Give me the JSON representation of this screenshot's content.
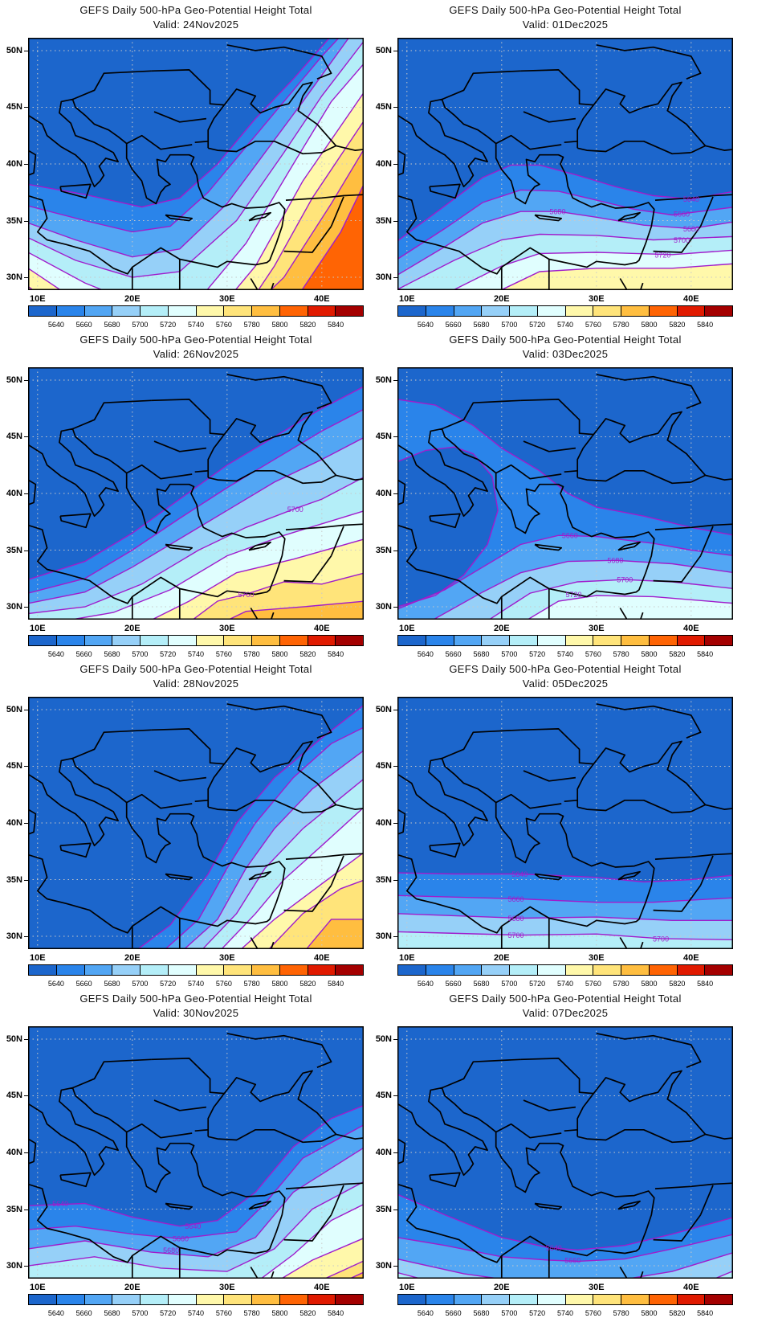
{
  "colorbar": {
    "labels": [
      "5640",
      "5660",
      "5680",
      "5700",
      "5720",
      "5740",
      "5760",
      "5780",
      "5800",
      "5820",
      "5840"
    ],
    "colors": [
      "#1c66cc",
      "#2a84ea",
      "#52a6f4",
      "#96d0f8",
      "#b4eef8",
      "#e0fefe",
      "#fff8aa",
      "#ffe47a",
      "#ffbe40",
      "#ff6404",
      "#e01a00",
      "#a40000"
    ]
  },
  "axes": {
    "lat_labels": [
      "50N",
      "45N",
      "40N",
      "35N",
      "30N"
    ],
    "lon_labels": [
      "10E",
      "20E",
      "30E",
      "40E"
    ]
  },
  "contour_color": "#a01ccc",
  "panels": [
    {
      "title": "GEFS Daily 500-hPa Geo-Potential Height Total",
      "valid": "Valid: 24Nov2025",
      "contour_labels": []
    },
    {
      "title": "GEFS Daily 500-hPa Geo-Potential Height Total",
      "valid": "Valid: 01Dec2025",
      "contour_labels": [
        {
          "text": "5680",
          "lon": 25.9,
          "lat": 35.8
        },
        {
          "text": "5640",
          "lon": 40,
          "lat": 36.9
        },
        {
          "text": "5660",
          "lon": 39,
          "lat": 35.6
        },
        {
          "text": "5680",
          "lon": 40,
          "lat": 34.3
        },
        {
          "text": "5700",
          "lon": 39,
          "lat": 33.3
        },
        {
          "text": "5720",
          "lon": 37,
          "lat": 32
        }
      ]
    },
    {
      "title": "GEFS Daily 500-hPa Geo-Potential Height Total",
      "valid": "Valid: 26Nov2025",
      "contour_labels": [
        {
          "text": "5700",
          "lon": 37.2,
          "lat": 38.6
        },
        {
          "text": "5760",
          "lon": 32,
          "lat": 31.1
        }
      ]
    },
    {
      "title": "GEFS Daily 500-hPa Geo-Potential Height Total",
      "valid": "Valid: 03Dec2025",
      "contour_labels": [
        {
          "text": "5660",
          "lon": 27.2,
          "lat": 36.3
        },
        {
          "text": "5680",
          "lon": 32,
          "lat": 34.1
        },
        {
          "text": "5700",
          "lon": 33,
          "lat": 32.4
        },
        {
          "text": "5720",
          "lon": 27.6,
          "lat": 31.1
        }
      ]
    },
    {
      "title": "GEFS Daily 500-hPa Geo-Potential Height Total",
      "valid": "Valid: 28Nov2025",
      "contour_labels": []
    },
    {
      "title": "GEFS Daily 500-hPa Geo-Potential Height Total",
      "valid": "Valid: 05Dec2025",
      "contour_labels": [
        {
          "text": "5640",
          "lon": 21.9,
          "lat": 35.5
        },
        {
          "text": "5660",
          "lon": 21.5,
          "lat": 33.3
        },
        {
          "text": "5680",
          "lon": 21.5,
          "lat": 31.6
        },
        {
          "text": "5700",
          "lon": 21.5,
          "lat": 30.1
        },
        {
          "text": "5700",
          "lon": 36.8,
          "lat": 29.8
        }
      ]
    },
    {
      "title": "GEFS Daily 500-hPa Geo-Potential Height Total",
      "valid": "Valid: 30Nov2025",
      "contour_labels": [
        {
          "text": "5640",
          "lon": 12.4,
          "lat": 35.5
        },
        {
          "text": "5640",
          "lon": 26.4,
          "lat": 33.5
        },
        {
          "text": "5660",
          "lon": 25.1,
          "lat": 32.4
        },
        {
          "text": "5680",
          "lon": 24.1,
          "lat": 31.4
        }
      ]
    },
    {
      "title": "GEFS Daily 500-hPa Geo-Potential Height Total",
      "valid": "Valid: 07Dec2025",
      "contour_labels": [
        {
          "text": "5640",
          "lon": 25.5,
          "lat": 31.6
        },
        {
          "text": "5660",
          "lon": 27.5,
          "lat": 30.5
        }
      ]
    }
  ]
}
